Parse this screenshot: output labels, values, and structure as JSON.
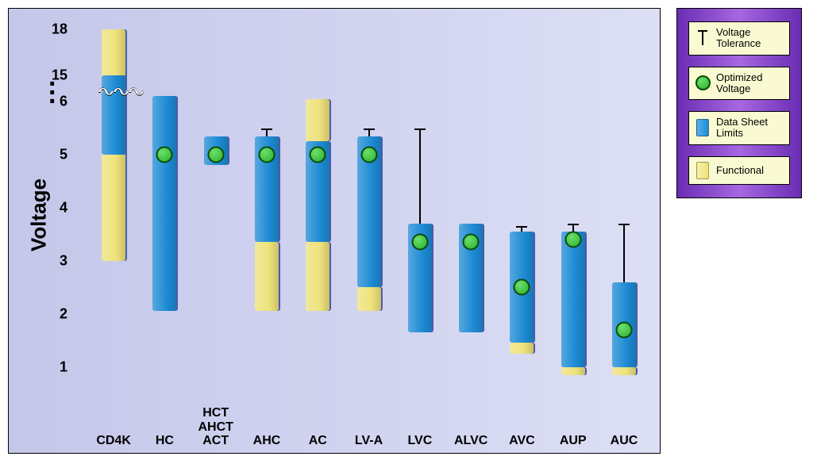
{
  "chart": {
    "title": "Voltage",
    "background_gradient": [
      "#c5c7ea",
      "#dcdff4"
    ],
    "legend_gradient": [
      "#6a2db3",
      "#a667e0",
      "#6a2db3"
    ],
    "legend_item_bg": "#fafad2",
    "colors": {
      "functional": "#eee27a",
      "datasheet": "#1d8bd4",
      "optimized": "#2bb02b",
      "optimized_border": "#0a4a0a",
      "whisker": "#000000",
      "bar_shadow": "#4b5caa",
      "text": "#000000"
    },
    "font": {
      "axis_title": 26,
      "tick": 18,
      "xlabel": 16,
      "legend": 13
    },
    "y_axis": {
      "title": "Voltage",
      "ticks": [
        1,
        2,
        3,
        4,
        5,
        6,
        15,
        18
      ],
      "break_between": [
        6,
        15
      ],
      "lower_range": [
        0.5,
        6.2
      ],
      "upper_range": [
        14,
        18.3
      ],
      "split_fraction": 0.82
    },
    "categories": [
      {
        "label": "CD4K"
      },
      {
        "label": "HC"
      },
      {
        "label": "HCT\nAHCT\nACT"
      },
      {
        "label": "AHC"
      },
      {
        "label": "AC"
      },
      {
        "label": "LV-A"
      },
      {
        "label": "LVC"
      },
      {
        "label": "ALVC"
      },
      {
        "label": "AVC"
      },
      {
        "label": "AUP"
      },
      {
        "label": "AUC"
      }
    ],
    "series": [
      {
        "name": "CD4K",
        "functional": [
          3.0,
          18.0
        ],
        "datasheet": [
          5.0,
          15.0
        ],
        "optimized": null,
        "tolerance": null
      },
      {
        "name": "HC",
        "functional": null,
        "datasheet": [
          2.05,
          6.1
        ],
        "optimized": 5.0,
        "tolerance": null
      },
      {
        "name": "HCT/AHCT/ACT",
        "functional": null,
        "datasheet": [
          4.8,
          5.35
        ],
        "optimized": 5.0,
        "tolerance": null
      },
      {
        "name": "AHC",
        "functional": [
          2.05,
          3.35
        ],
        "datasheet": [
          3.35,
          5.35
        ],
        "optimized": 5.0,
        "tolerance": [
          5.35,
          5.5
        ]
      },
      {
        "name": "AC",
        "functional": [
          2.05,
          3.35
        ],
        "datasheet": [
          3.35,
          5.25
        ],
        "optimized": 5.0,
        "tolerance": null,
        "extra_functional_top": [
          5.25,
          6.05
        ]
      },
      {
        "name": "LV-A",
        "functional": [
          2.05,
          2.5
        ],
        "datasheet": [
          2.5,
          5.35
        ],
        "optimized": 5.0,
        "tolerance": [
          5.35,
          5.5
        ]
      },
      {
        "name": "LVC",
        "functional": null,
        "datasheet": [
          1.65,
          3.7
        ],
        "optimized": 3.35,
        "tolerance": [
          3.7,
          5.5
        ]
      },
      {
        "name": "ALVC",
        "functional": null,
        "datasheet": [
          1.65,
          3.7
        ],
        "optimized": 3.35,
        "tolerance": null
      },
      {
        "name": "AVC",
        "functional": [
          1.25,
          1.45
        ],
        "datasheet": [
          1.45,
          3.55
        ],
        "optimized": 2.5,
        "tolerance": [
          3.55,
          3.65
        ]
      },
      {
        "name": "AUP",
        "functional": [
          0.85,
          1.0
        ],
        "datasheet": [
          1.0,
          3.55
        ],
        "optimized": 3.4,
        "tolerance": [
          3.55,
          3.7
        ]
      },
      {
        "name": "AUC",
        "functional": [
          0.85,
          1.0
        ],
        "datasheet": [
          1.0,
          2.6
        ],
        "optimized": 1.7,
        "tolerance": [
          2.6,
          3.7
        ]
      }
    ],
    "legend": [
      {
        "symbol": "whisker",
        "label": "Voltage\nTolerance"
      },
      {
        "symbol": "dot",
        "label": "Optimized\nVoltage"
      },
      {
        "symbol": "box-blue",
        "label": "Data Sheet\nLimits"
      },
      {
        "symbol": "box-yellow",
        "label": "Functional"
      }
    ]
  }
}
